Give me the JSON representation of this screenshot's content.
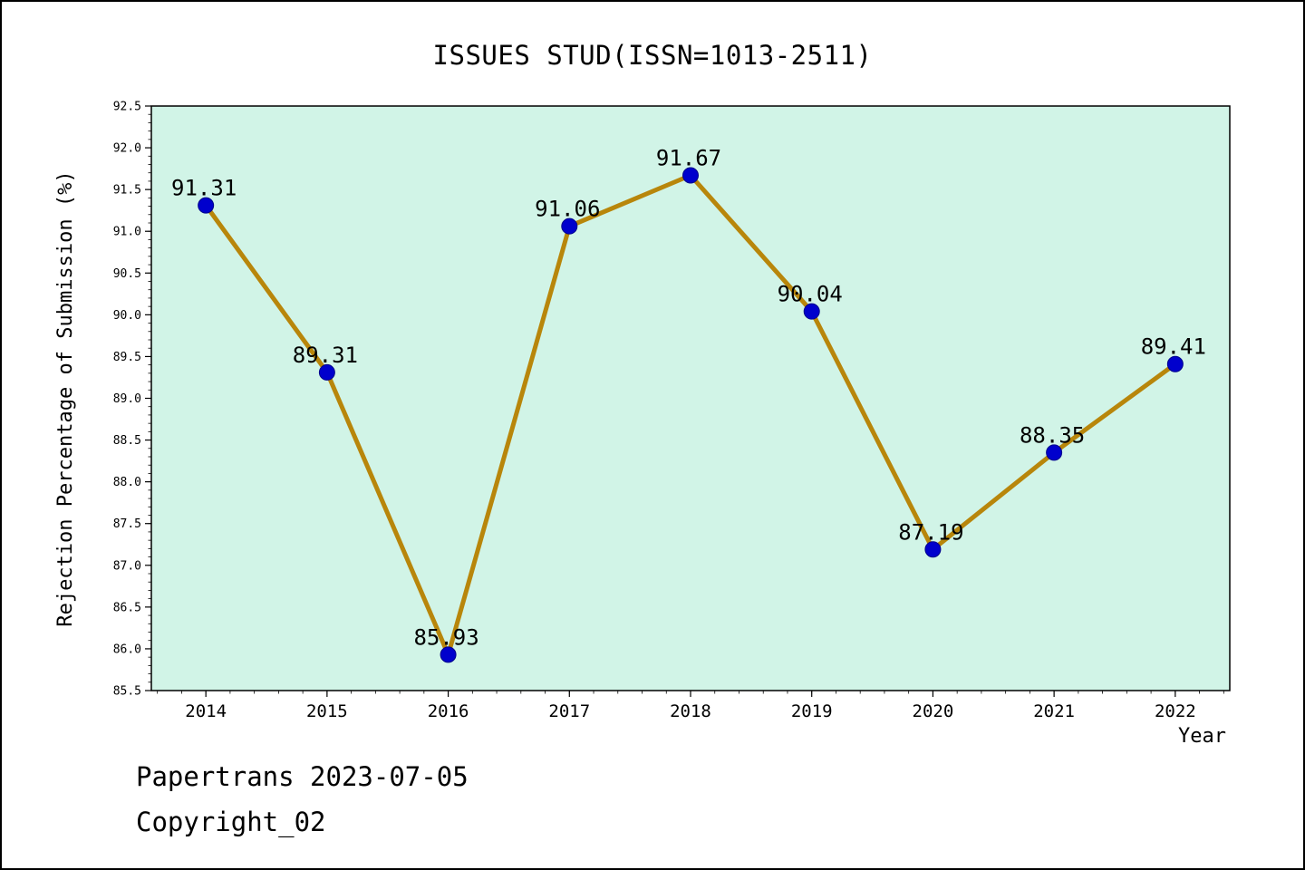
{
  "page": {
    "background": "#ffffff",
    "border_color": "#000000"
  },
  "chart_data": {
    "type": "line",
    "title": "ISSUES STUD(ISSN=1013-2511)",
    "xlabel": "Year",
    "ylabel": "Rejection Percentage of Submission (%)",
    "x": [
      2014,
      2015,
      2016,
      2017,
      2018,
      2019,
      2020,
      2021,
      2022
    ],
    "values": [
      91.31,
      89.31,
      85.93,
      91.06,
      91.67,
      90.04,
      87.19,
      88.35,
      89.41
    ],
    "data_labels": [
      "91.31",
      "89.31",
      "85.93",
      "91.06",
      "91.67",
      "90.04",
      "87.19",
      "88.35",
      "89.41"
    ],
    "xlim": [
      2013.55,
      2022.45
    ],
    "ylim": [
      85.5,
      92.5
    ],
    "yticks": [
      85.5,
      86.0,
      86.5,
      87.0,
      87.5,
      88.0,
      88.5,
      89.0,
      89.5,
      90.0,
      90.5,
      91.0,
      91.5,
      92.0,
      92.5
    ],
    "y_minor_step": 0.1,
    "x_minor_step": 0.2,
    "grid": false,
    "legend": null,
    "colors": {
      "line": "#b8860b",
      "marker_fill": "#0000cd",
      "marker_edge": "#00008b",
      "plot_background": "#d1f4e7",
      "axis": "#000000",
      "text": "#000000"
    }
  },
  "footer": {
    "line1": "Papertrans 2023-07-05",
    "line2": "Copyright_02"
  }
}
